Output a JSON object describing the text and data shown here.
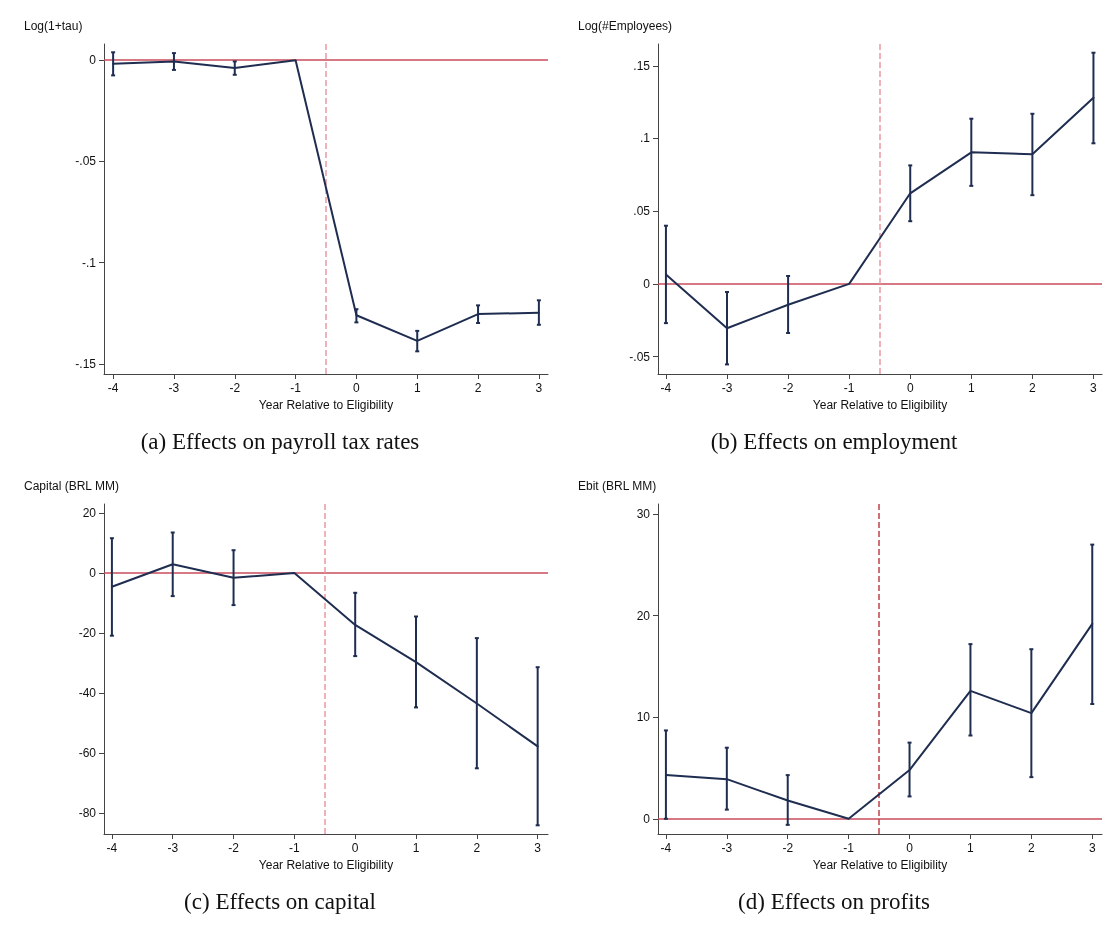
{
  "chart_data": [
    {
      "type": "line",
      "title": "(a) Effects on payroll tax rates",
      "xlabel": "Year Relative to Eligibility",
      "ylabel": "Log(1+tau)",
      "x": [
        -4,
        -3,
        -2,
        -1,
        0,
        1,
        2,
        3
      ],
      "series": [
        {
          "color": "#1f2d50",
          "values": [
            -0.0018,
            -0.0006,
            -0.0039,
            0,
            -0.126,
            -0.1386,
            -0.1254,
            -0.1247
          ],
          "errors": [
            [
              -0.0075,
              0.0039
            ],
            [
              -0.0048,
              0.0035
            ],
            [
              -0.0072,
              -0.0006
            ],
            null,
            [
              -0.1295,
              -0.123
            ],
            [
              -0.1438,
              -0.1337
            ],
            [
              -0.1298,
              -0.1211
            ],
            [
              -0.1307,
              -0.1186
            ]
          ]
        }
      ],
      "xlim": [
        -4.15,
        3.15
      ],
      "xticks": [
        -4,
        -3,
        -2,
        -1,
        0,
        1,
        2,
        3
      ],
      "ylim": [
        -0.155,
        0.008
      ],
      "yticks": [
        {
          "value": -0.15,
          "label": "-.15"
        },
        {
          "value": -0.1,
          "label": "-.1"
        },
        {
          "value": -0.05,
          "label": "-.05"
        },
        0
      ],
      "ref_lines": [
        {
          "axis": "y",
          "value": 0,
          "color": "#c94c5b",
          "line_style": "solid"
        },
        {
          "axis": "x",
          "value": -0.5,
          "color": "#e89aa1",
          "line_style": "dashed"
        }
      ],
      "marker": "none",
      "line_style": "solid",
      "grid": false
    },
    {
      "type": "line",
      "title": "(b) Effects on employment",
      "xlabel": "Year Relative to Eligibility",
      "ylabel": "Log(#Employees)",
      "x": [
        -4,
        -3,
        -2,
        -1,
        0,
        1,
        2,
        3
      ],
      "series": [
        {
          "color": "#1f2d50",
          "values": [
            0.0064,
            -0.0305,
            -0.0144,
            0,
            0.0623,
            0.0905,
            0.0892,
            0.128
          ],
          "errors": [
            [
              -0.027,
              0.04
            ],
            [
              -0.0554,
              -0.0056
            ],
            [
              -0.0338,
              0.0054
            ],
            null,
            [
              0.0431,
              0.0815
            ],
            [
              0.0674,
              0.1136
            ],
            [
              0.061,
              0.117
            ],
            [
              0.0967,
              0.159
            ]
          ]
        }
      ],
      "xlim": [
        -4.13,
        3.14
      ],
      "xticks": [
        -4,
        -3,
        -2,
        -1,
        0,
        1,
        2,
        3
      ],
      "ylim": [
        -0.062,
        0.165
      ],
      "yticks": [
        {
          "value": -0.05,
          "label": "-.05"
        },
        0,
        {
          "value": 0.05,
          "label": ".05"
        },
        {
          "value": 0.1,
          "label": ".1"
        },
        {
          "value": 0.15,
          "label": ".15"
        }
      ],
      "ref_lines": [
        {
          "axis": "y",
          "value": 0,
          "color": "#c94c5b",
          "line_style": "solid"
        },
        {
          "axis": "x",
          "value": -0.5,
          "color": "#e89aa1",
          "line_style": "dashed"
        }
      ],
      "marker": "none",
      "line_style": "solid",
      "grid": false
    },
    {
      "type": "line",
      "title": "(c) Effects on capital",
      "xlabel": "Year Relative to Eligibility",
      "ylabel": "Capital (BRL MM)",
      "x": [
        -4,
        -3,
        -2,
        -1,
        0,
        1,
        2,
        3
      ],
      "series": [
        {
          "color": "#1f2d50",
          "values": [
            -4.6,
            2.9,
            -1.6,
            0,
            -17.3,
            -29.7,
            -43.5,
            -57.8
          ],
          "errors": [
            [
              -20.9,
              11.6
            ],
            [
              -7.7,
              13.5
            ],
            [
              -10.7,
              7.6
            ],
            null,
            [
              -27.7,
              -6.6
            ],
            [
              -44.8,
              -14.5
            ],
            [
              -65.1,
              -21.7
            ],
            [
              -84.1,
              -31.4
            ]
          ]
        }
      ],
      "xlim": [
        -4.13,
        3.17
      ],
      "xticks": [
        -4,
        -3,
        -2,
        -1,
        0,
        1,
        2,
        3
      ],
      "ylim": [
        -87,
        23
      ],
      "yticks": [
        -80,
        -60,
        -40,
        -20,
        0,
        20
      ],
      "ref_lines": [
        {
          "axis": "y",
          "value": 0,
          "color": "#c94c5b",
          "line_style": "solid"
        },
        {
          "axis": "x",
          "value": -0.5,
          "color": "#e89aa1",
          "line_style": "dashed"
        }
      ],
      "marker": "none",
      "line_style": "solid",
      "grid": false
    },
    {
      "type": "line",
      "title": "(d) Effects on profits",
      "xlabel": "Year Relative to Eligibility",
      "ylabel": "Ebit (BRL MM)",
      "x": [
        -4,
        -3,
        -2,
        -1,
        0,
        1,
        2,
        3
      ],
      "series": [
        {
          "color": "#1f2d50",
          "values": [
            4.3,
            3.9,
            1.8,
            0,
            4.8,
            12.6,
            10.4,
            19.2
          ],
          "errors": [
            [
              0,
              8.7
            ],
            [
              0.9,
              7
            ],
            [
              -0.6,
              4.3
            ],
            null,
            [
              2.2,
              7.5
            ],
            [
              8.2,
              17.2
            ],
            [
              4.1,
              16.7
            ],
            [
              11.3,
              27
            ]
          ]
        }
      ],
      "xlim": [
        -4.13,
        3.16
      ],
      "xticks": [
        -4,
        -3,
        -2,
        -1,
        0,
        1,
        2,
        3
      ],
      "ylim": [
        -1.5,
        31
      ],
      "yticks": [
        0,
        10,
        20,
        30
      ],
      "ref_lines": [
        {
          "axis": "y",
          "value": 0,
          "color": "#c94c5b",
          "line_style": "solid"
        },
        {
          "axis": "x",
          "value": -0.5,
          "color": "#c0404a",
          "line_style": "dashed"
        }
      ],
      "marker": "none",
      "line_style": "solid",
      "grid": false
    }
  ]
}
